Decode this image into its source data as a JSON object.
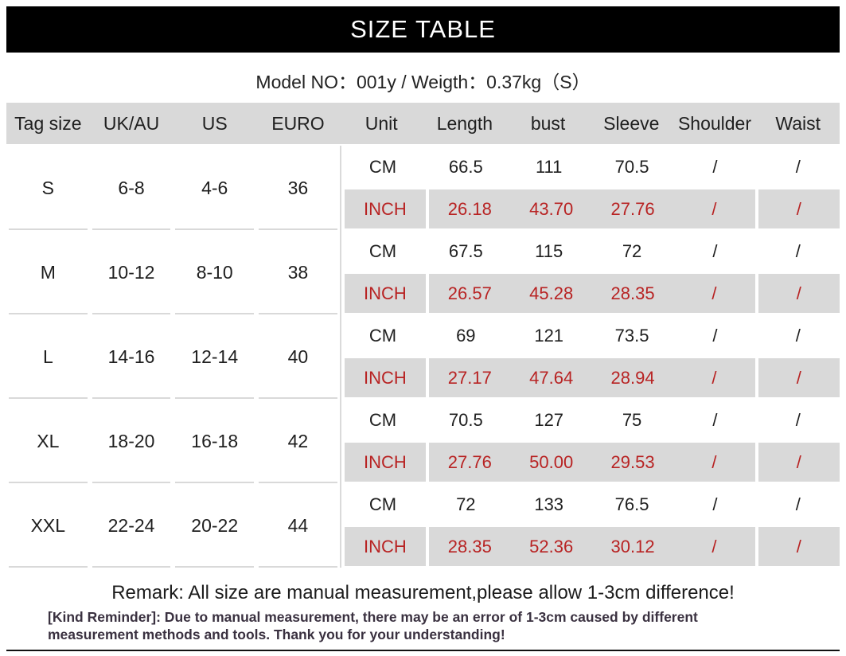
{
  "banner": {
    "title": "SIZE TABLE"
  },
  "subtitle": {
    "text": "Model NO：001y / Weigth：0.37kg（S）"
  },
  "colors": {
    "banner_black": "#000000",
    "band_gray": "#d9d9d9",
    "inch_red": "#b82323",
    "reminder_dark": "#3a3140"
  },
  "table": {
    "headers": [
      "Tag size",
      "UK/AU",
      "US",
      "EURO",
      "Unit",
      "Length",
      "bust",
      "Sleeve",
      "Shoulder",
      "Waist"
    ],
    "unit_cm_label": "CM",
    "unit_inch_label": "INCH",
    "rows": [
      {
        "tag": "S",
        "uk_au": "6-8",
        "us": "4-6",
        "euro": "36",
        "cm": [
          "66.5",
          "111",
          "70.5",
          "/",
          "/"
        ],
        "inch": [
          "26.18",
          "43.70",
          "27.76",
          "/",
          "/"
        ]
      },
      {
        "tag": "M",
        "uk_au": "10-12",
        "us": "8-10",
        "euro": "38",
        "cm": [
          "67.5",
          "115",
          "72",
          "/",
          "/"
        ],
        "inch": [
          "26.57",
          "45.28",
          "28.35",
          "/",
          "/"
        ]
      },
      {
        "tag": "L",
        "uk_au": "14-16",
        "us": "12-14",
        "euro": "40",
        "cm": [
          "69",
          "121",
          "73.5",
          "/",
          "/"
        ],
        "inch": [
          "27.17",
          "47.64",
          "28.94",
          "/",
          "/"
        ]
      },
      {
        "tag": "XL",
        "uk_au": "18-20",
        "us": "16-18",
        "euro": "42",
        "cm": [
          "70.5",
          "127",
          "75",
          "/",
          "/"
        ],
        "inch": [
          "27.76",
          "50.00",
          "29.53",
          "/",
          "/"
        ]
      },
      {
        "tag": "XXL",
        "uk_au": "22-24",
        "us": "20-22",
        "euro": "44",
        "cm": [
          "72",
          "133",
          "76.5",
          "/",
          "/"
        ],
        "inch": [
          "28.35",
          "52.36",
          "30.12",
          "/",
          "/"
        ]
      }
    ]
  },
  "chart_data": {
    "type": "table",
    "title": "SIZE TABLE",
    "subtitle": "Model NO：001y / Weigth：0.37kg（S）",
    "columns": [
      "Tag size",
      "UK/AU",
      "US",
      "EURO",
      "Unit",
      "Length",
      "bust",
      "Sleeve",
      "Shoulder",
      "Waist"
    ],
    "rows": [
      [
        "S",
        "6-8",
        "4-6",
        "36",
        "CM",
        "66.5",
        "111",
        "70.5",
        "/",
        "/"
      ],
      [
        "S",
        "6-8",
        "4-6",
        "36",
        "INCH",
        "26.18",
        "43.70",
        "27.76",
        "/",
        "/"
      ],
      [
        "M",
        "10-12",
        "8-10",
        "38",
        "CM",
        "67.5",
        "115",
        "72",
        "/",
        "/"
      ],
      [
        "M",
        "10-12",
        "8-10",
        "38",
        "INCH",
        "26.57",
        "45.28",
        "28.35",
        "/",
        "/"
      ],
      [
        "L",
        "14-16",
        "12-14",
        "40",
        "CM",
        "69",
        "121",
        "73.5",
        "/",
        "/"
      ],
      [
        "L",
        "14-16",
        "12-14",
        "40",
        "INCH",
        "27.17",
        "47.64",
        "28.94",
        "/",
        "/"
      ],
      [
        "XL",
        "18-20",
        "16-18",
        "42",
        "CM",
        "70.5",
        "127",
        "75",
        "/",
        "/"
      ],
      [
        "XL",
        "18-20",
        "16-18",
        "42",
        "INCH",
        "27.76",
        "50.00",
        "29.53",
        "/",
        "/"
      ],
      [
        "XXL",
        "22-24",
        "20-22",
        "44",
        "CM",
        "72",
        "133",
        "76.5",
        "/",
        "/"
      ],
      [
        "XXL",
        "22-24",
        "20-22",
        "44",
        "INCH",
        "28.35",
        "52.36",
        "30.12",
        "/",
        "/"
      ]
    ]
  },
  "footer": {
    "remark": "Remark: All size are manual measurement,please allow 1-3cm difference!",
    "kind_reminder": "[Kind Reminder]: Due to manual measurement, there may be an error of 1-3cm caused by different measurement methods and tools. Thank you for your understanding!"
  }
}
